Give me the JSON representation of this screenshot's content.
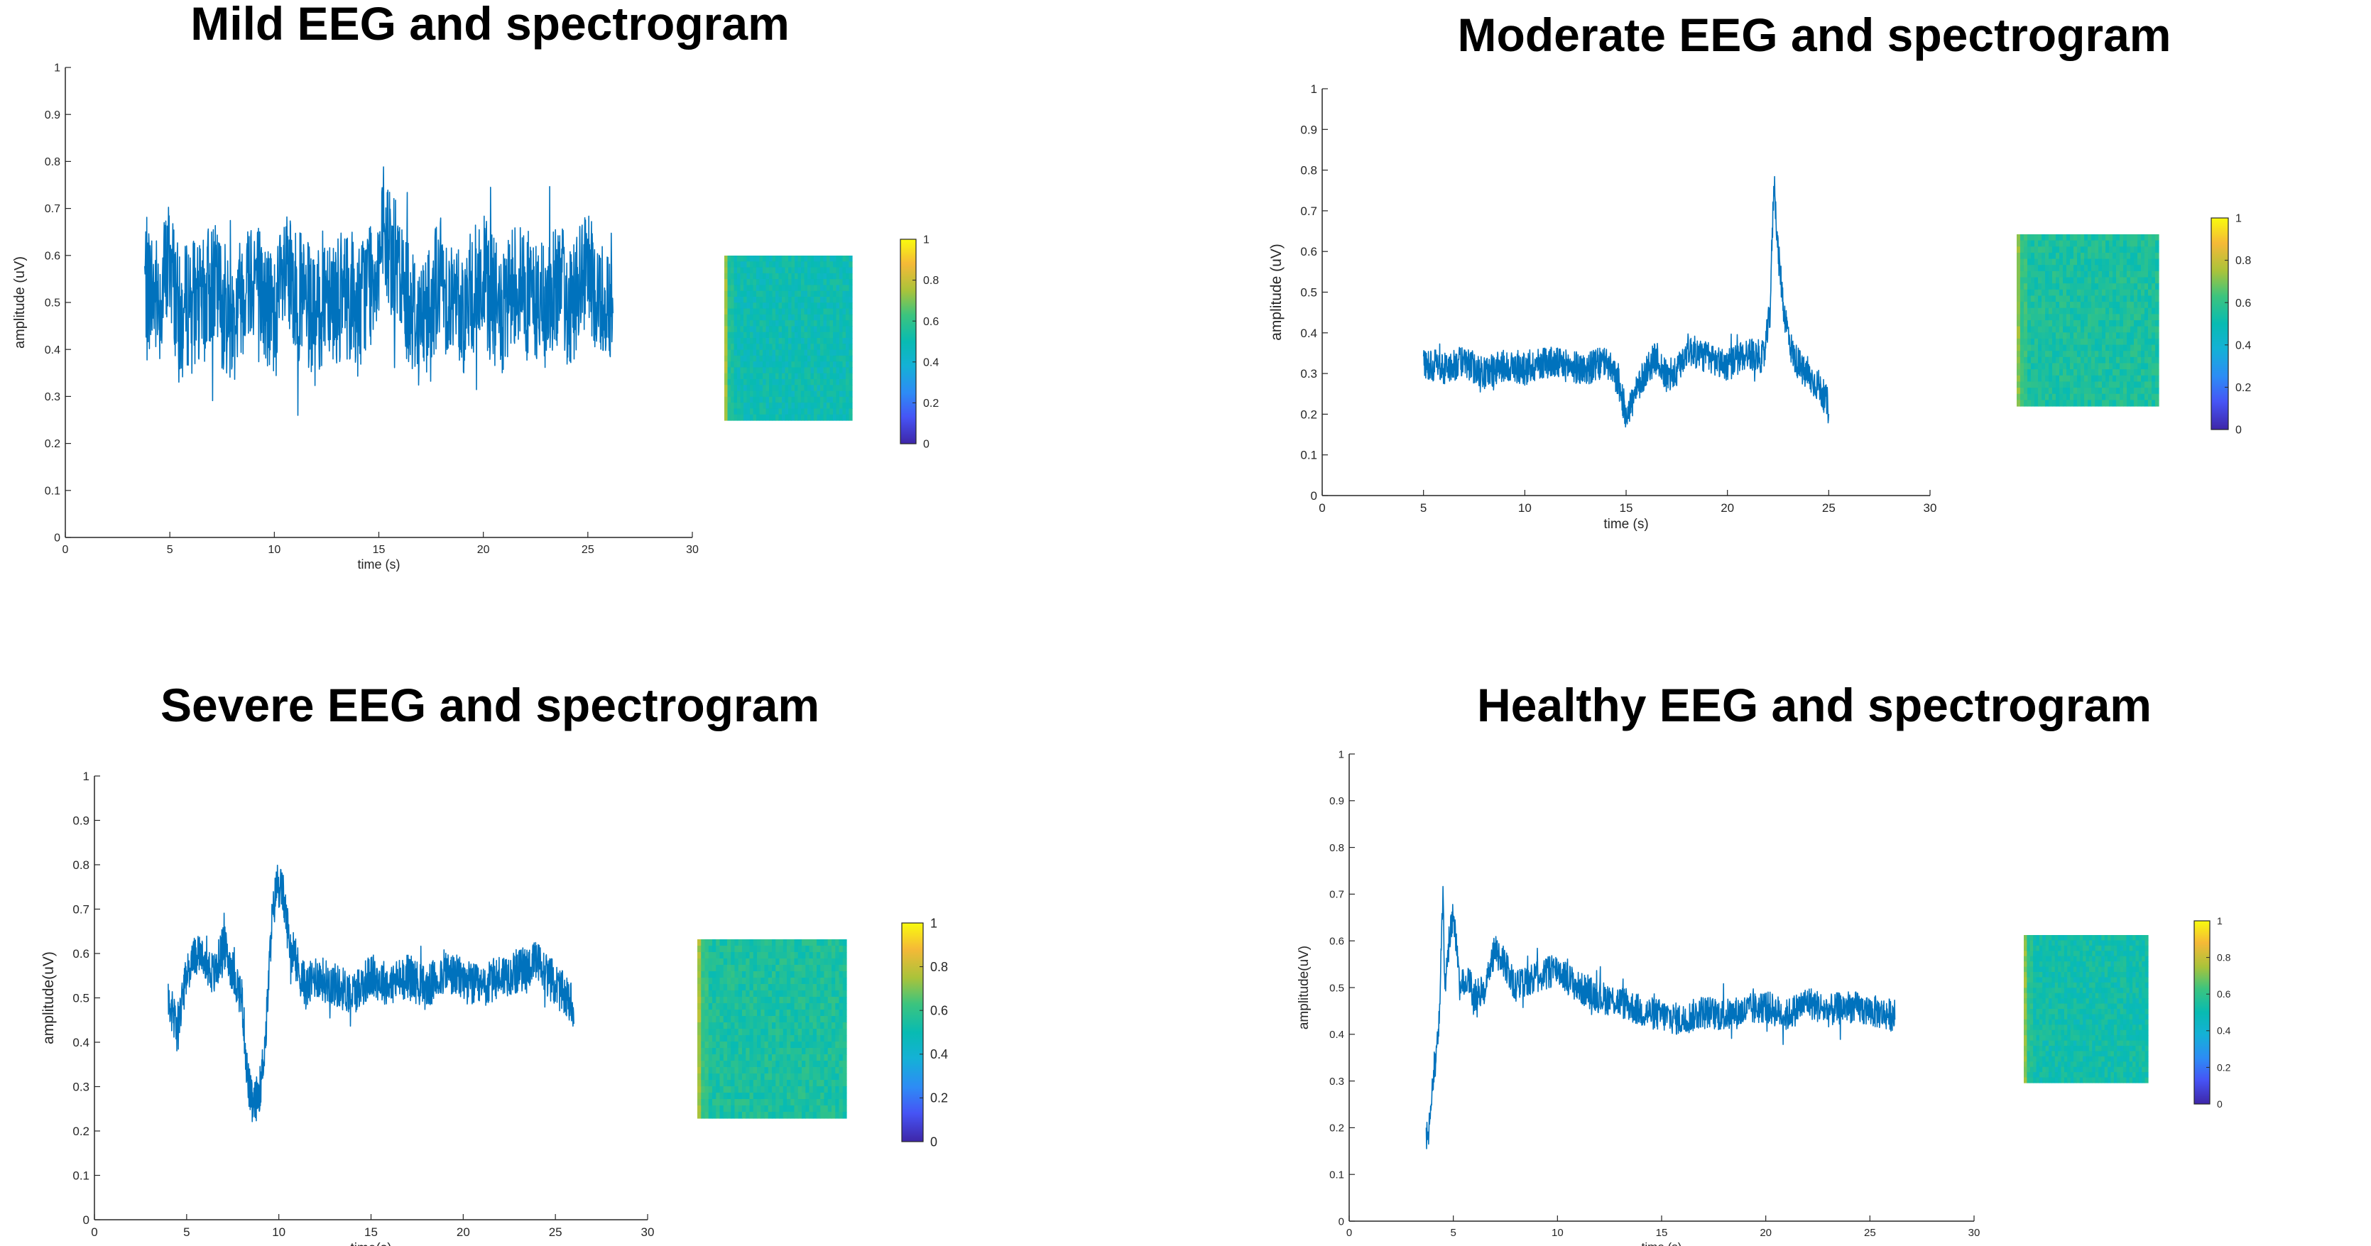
{
  "chart_data": [
    {
      "type": "line",
      "title": "Mild EEG and spectrogram",
      "xlabel": "time (s)",
      "ylabel": "amplitude (uV)",
      "xlim": [
        0,
        30
      ],
      "ylim": [
        0,
        1
      ],
      "xticks": [
        0,
        5,
        10,
        15,
        20,
        25,
        30
      ],
      "yticks": [
        0,
        0.1,
        0.2,
        0.3,
        0.4,
        0.5,
        0.6,
        0.7,
        0.8,
        0.9,
        1
      ],
      "series": [
        {
          "color": "#0072BD",
          "x": [
            3.8,
            4.5,
            5.0,
            5.5,
            6.0,
            6.5,
            7.0,
            7.5,
            8.0,
            8.5,
            9.0,
            9.5,
            10.0,
            10.5,
            11.0,
            11.5,
            12.0,
            12.5,
            13.0,
            13.5,
            14.0,
            14.5,
            15.0,
            15.5,
            16.0,
            16.5,
            17.0,
            17.5,
            18.0,
            18.5,
            19.0,
            19.5,
            20.0,
            20.5,
            21.0,
            21.5,
            22.0,
            22.5,
            23.0,
            23.5,
            24.0,
            24.5,
            25.0,
            25.5,
            26.2
          ],
          "y": [
            0.55,
            0.5,
            0.6,
            0.45,
            0.52,
            0.48,
            0.55,
            0.5,
            0.46,
            0.53,
            0.58,
            0.5,
            0.47,
            0.55,
            0.52,
            0.5,
            0.45,
            0.55,
            0.5,
            0.52,
            0.48,
            0.55,
            0.6,
            0.62,
            0.55,
            0.5,
            0.45,
            0.52,
            0.55,
            0.5,
            0.48,
            0.52,
            0.55,
            0.5,
            0.46,
            0.55,
            0.52,
            0.5,
            0.48,
            0.55,
            0.5,
            0.52,
            0.55,
            0.5,
            0.52
          ],
          "noise": 0.14
        }
      ],
      "colorbar": {
        "ticks": [
          0,
          0.2,
          0.4,
          0.6,
          0.8,
          1
        ]
      },
      "spectrogram": {
        "first_column": 0.75,
        "rest": 0.5
      }
    },
    {
      "type": "line",
      "title": "Moderate EEG and spectrogram",
      "xlabel": "time (s)",
      "ylabel": "amplitude (uV)",
      "xlim": [
        0,
        30
      ],
      "ylim": [
        0,
        1
      ],
      "xticks": [
        0,
        5,
        10,
        15,
        20,
        25,
        30
      ],
      "yticks": [
        0,
        0.1,
        0.2,
        0.3,
        0.4,
        0.5,
        0.6,
        0.7,
        0.8,
        0.9,
        1
      ],
      "series": [
        {
          "color": "#0072BD",
          "x": [
            5.0,
            6.0,
            7.0,
            8.0,
            9.0,
            10.0,
            11.0,
            12.0,
            13.0,
            14.0,
            14.6,
            15.0,
            15.4,
            16.0,
            16.5,
            17.0,
            17.5,
            18.0,
            19.0,
            20.0,
            21.0,
            21.8,
            22.1,
            22.3,
            22.5,
            22.8,
            23.2,
            23.8,
            24.5,
            25.0
          ],
          "y": [
            0.33,
            0.31,
            0.33,
            0.3,
            0.32,
            0.31,
            0.33,
            0.32,
            0.31,
            0.33,
            0.28,
            0.2,
            0.24,
            0.31,
            0.34,
            0.29,
            0.3,
            0.36,
            0.34,
            0.32,
            0.35,
            0.34,
            0.45,
            0.78,
            0.6,
            0.45,
            0.35,
            0.3,
            0.27,
            0.22
          ],
          "noise": 0.04
        }
      ],
      "colorbar": {
        "ticks": [
          0,
          0.2,
          0.4,
          0.6,
          0.8,
          1
        ]
      },
      "spectrogram": {
        "first_column": 0.72,
        "rest": 0.55
      }
    },
    {
      "type": "line",
      "title": "Severe EEG and spectrogram",
      "xlabel": "time(s)",
      "ylabel": "amplitude(uV)",
      "xlim": [
        0,
        30
      ],
      "ylim": [
        0,
        1
      ],
      "xticks": [
        0,
        5,
        10,
        15,
        20,
        25,
        30
      ],
      "yticks": [
        0,
        0.1,
        0.2,
        0.3,
        0.4,
        0.5,
        0.6,
        0.7,
        0.8,
        0.9,
        1
      ],
      "series": [
        {
          "color": "#0072BD",
          "x": [
            4.0,
            4.5,
            5.0,
            5.5,
            6.0,
            6.5,
            7.0,
            7.5,
            8.0,
            8.3,
            8.6,
            9.0,
            9.3,
            9.6,
            9.9,
            10.2,
            10.6,
            11.0,
            11.5,
            12.0,
            13.0,
            14.0,
            15.0,
            16.0,
            17.0,
            18.0,
            19.0,
            20.0,
            21.0,
            22.0,
            23.0,
            24.0,
            25.0,
            26.0
          ],
          "y": [
            0.5,
            0.42,
            0.55,
            0.6,
            0.58,
            0.55,
            0.62,
            0.56,
            0.5,
            0.32,
            0.25,
            0.3,
            0.42,
            0.66,
            0.76,
            0.74,
            0.62,
            0.57,
            0.52,
            0.55,
            0.53,
            0.51,
            0.55,
            0.53,
            0.55,
            0.52,
            0.56,
            0.54,
            0.52,
            0.55,
            0.56,
            0.58,
            0.53,
            0.48
          ],
          "noise": 0.05
        }
      ],
      "colorbar": {
        "ticks": [
          0,
          0.2,
          0.4,
          0.6,
          0.8,
          1
        ]
      },
      "spectrogram": {
        "first_column": 0.75,
        "rest": 0.55
      }
    },
    {
      "type": "line",
      "title": "Healthy EEG and spectrogram",
      "xlabel": "time (s)",
      "ylabel": "amplitude(uV)",
      "xlim": [
        0,
        30
      ],
      "ylim": [
        0,
        1
      ],
      "xticks": [
        0,
        5,
        10,
        15,
        20,
        25,
        30
      ],
      "yticks": [
        0,
        0.1,
        0.2,
        0.3,
        0.4,
        0.5,
        0.6,
        0.7,
        0.8,
        0.9,
        1
      ],
      "series": [
        {
          "color": "#0072BD",
          "x": [
            3.7,
            4.0,
            4.3,
            4.5,
            4.6,
            4.8,
            5.0,
            5.3,
            5.7,
            6.0,
            6.5,
            7.0,
            7.5,
            8.0,
            9.0,
            10.0,
            11.0,
            12.0,
            13.0,
            14.0,
            15.0,
            16.0,
            17.0,
            18.0,
            19.0,
            20.0,
            21.0,
            22.0,
            23.0,
            24.0,
            25.0,
            26.2
          ],
          "y": [
            0.17,
            0.3,
            0.4,
            0.7,
            0.5,
            0.6,
            0.66,
            0.5,
            0.52,
            0.48,
            0.5,
            0.58,
            0.55,
            0.5,
            0.52,
            0.54,
            0.5,
            0.48,
            0.47,
            0.45,
            0.44,
            0.43,
            0.45,
            0.44,
            0.45,
            0.46,
            0.44,
            0.47,
            0.45,
            0.46,
            0.45,
            0.44
          ],
          "noise": 0.035
        }
      ],
      "colorbar": {
        "ticks": [
          0,
          0.2,
          0.4,
          0.6,
          0.8,
          1
        ]
      },
      "spectrogram": {
        "first_column": 0.72,
        "rest": 0.52
      }
    }
  ]
}
